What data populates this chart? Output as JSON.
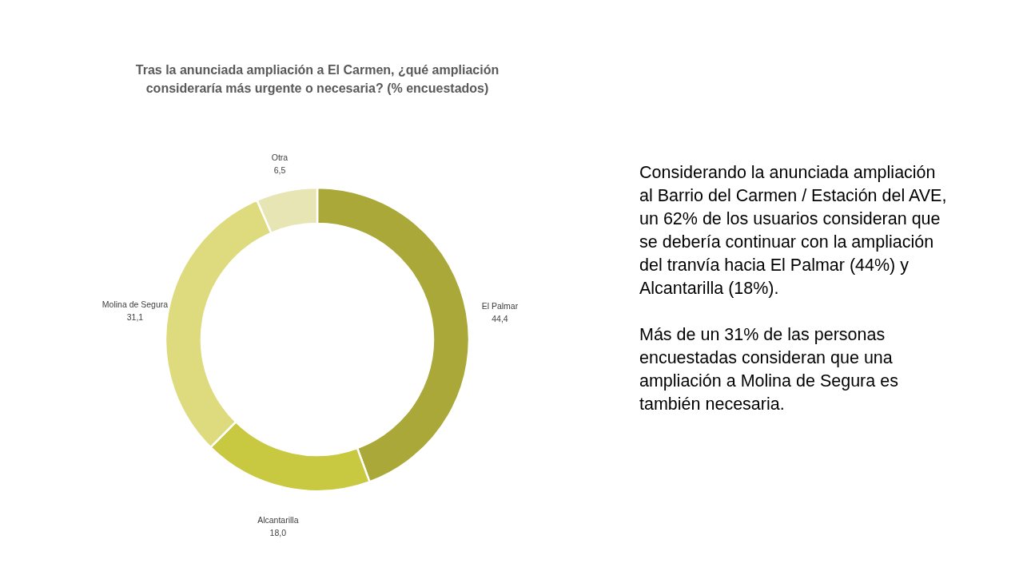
{
  "chart_data": [
    {
      "type": "donut",
      "title": "Tras la anunciada ampliación a El Carmen, ¿qué ampliación\nconsideraría más urgente o necesaria? (% encuestados)",
      "categories": [
        "El Palmar",
        "Alcantarilla",
        "Molina de Segura",
        "Otra"
      ],
      "values": [
        44.4,
        18.0,
        31.1,
        6.5
      ],
      "colors": [
        "#a9a838",
        "#c8c841",
        "#dedb7e",
        "#e8e5b5"
      ],
      "value_labels": [
        "44,4",
        "18,0",
        "31,1",
        "6,5"
      ]
    },
    {
      "type": "other",
      "annotations": [
        "Considerando la anunciada ampliación\nal Barrio del Carmen / Estación del AVE,\nun 62% de los usuarios consideran que\nse debería continuar con la ampliación\ndel tranvía hacia El Palmar (44%) y\nAlcantarilla (18%).",
        "Más de un 31% de las personas\nencuestadas consideran que una\nampliación a Molina de Segura es\ntambién necesaria."
      ]
    }
  ]
}
